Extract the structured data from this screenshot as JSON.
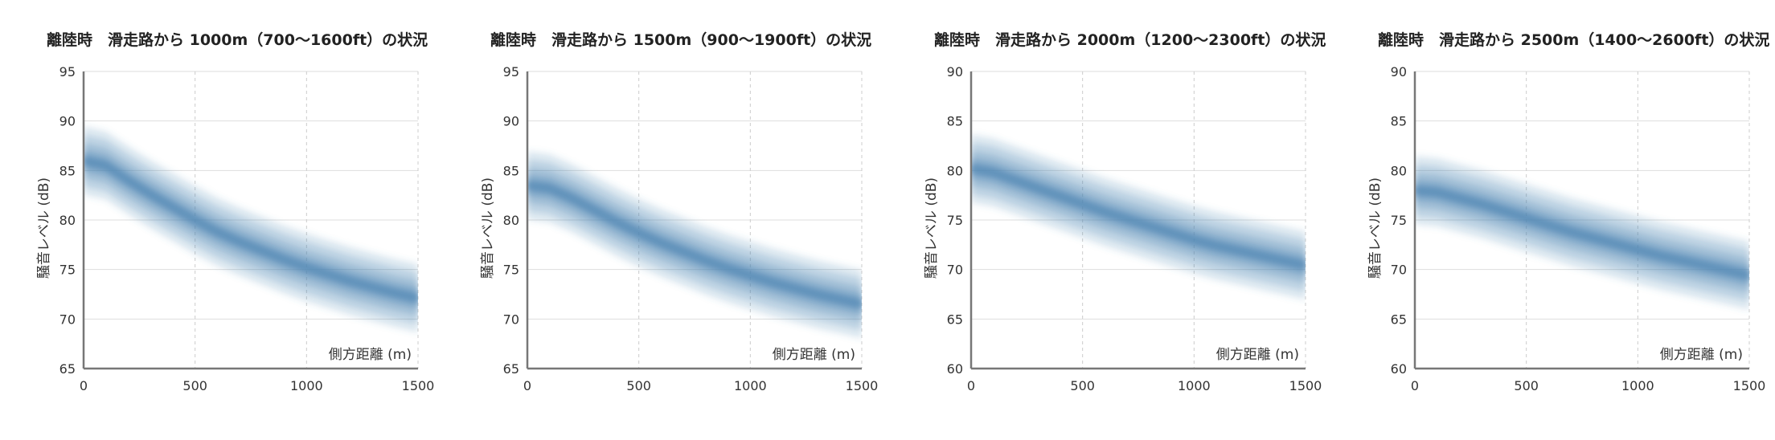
{
  "colors": {
    "band": "#4f86b3",
    "axis": "#777777",
    "grid": "#dddddd",
    "grid_dashed": "#cccccc"
  },
  "chart_data": [
    {
      "type": "area",
      "title": "離陸時　滑走路から 1000m（700〜1600ft）の状況",
      "xlabel": "側方距離 (m)",
      "ylabel": "騒音レベル (dB)",
      "xlim": [
        0,
        1500
      ],
      "ylim": [
        65,
        95
      ],
      "x_ticks": [
        "0",
        "500",
        "1000",
        "1500"
      ],
      "y_ticks": [
        "65",
        "70",
        "75",
        "80",
        "85",
        "90",
        "95"
      ],
      "grid": true,
      "x": [
        0,
        100,
        200,
        300,
        400,
        500,
        600,
        700,
        800,
        900,
        1000,
        1100,
        1200,
        1300,
        1400,
        1500
      ],
      "values": [
        86.0,
        85.5,
        84.0,
        82.6,
        81.3,
        80.0,
        78.8,
        77.8,
        76.9,
        76.0,
        75.2,
        74.5,
        73.8,
        73.2,
        72.6,
        72.1
      ],
      "band_halfwidth": 3.5
    },
    {
      "type": "area",
      "title": "離陸時　滑走路から 1500m（900〜1900ft）の状況",
      "xlabel": "側方距離 (m)",
      "ylabel": "騒音レベル (dB)",
      "xlim": [
        0,
        1500
      ],
      "ylim": [
        65,
        95
      ],
      "x_ticks": [
        "0",
        "500",
        "1000",
        "1500"
      ],
      "y_ticks": [
        "65",
        "70",
        "75",
        "80",
        "85",
        "90",
        "95"
      ],
      "grid": true,
      "x": [
        0,
        100,
        200,
        300,
        400,
        500,
        600,
        700,
        800,
        900,
        1000,
        1100,
        1200,
        1300,
        1400,
        1500
      ],
      "values": [
        83.5,
        83.2,
        82.2,
        81.0,
        79.8,
        78.7,
        77.7,
        76.8,
        75.9,
        75.1,
        74.4,
        73.7,
        73.1,
        72.5,
        72.0,
        71.5
      ],
      "band_halfwidth": 3.5
    },
    {
      "type": "area",
      "title": "離陸時　滑走路から 2000m（1200〜2300ft）の状況",
      "xlabel": "側方距離 (m)",
      "ylabel": "騒音レベル (dB)",
      "xlim": [
        0,
        1500
      ],
      "ylim": [
        60,
        90
      ],
      "x_ticks": [
        "0",
        "500",
        "1000",
        "1500"
      ],
      "y_ticks": [
        "60",
        "65",
        "70",
        "75",
        "80",
        "85",
        "90"
      ],
      "grid": true,
      "x": [
        0,
        100,
        200,
        300,
        400,
        500,
        600,
        700,
        800,
        900,
        1000,
        1100,
        1200,
        1300,
        1400,
        1500
      ],
      "values": [
        80.2,
        79.8,
        79.0,
        78.2,
        77.4,
        76.6,
        75.8,
        75.1,
        74.4,
        73.7,
        73.0,
        72.4,
        71.9,
        71.4,
        70.9,
        70.4
      ],
      "band_halfwidth": 3.5
    },
    {
      "type": "area",
      "title": "離陸時　滑走路から 2500m（1400〜2600ft）の状況",
      "xlabel": "側方距離 (m)",
      "ylabel": "騒音レベル (dB)",
      "xlim": [
        0,
        1500
      ],
      "ylim": [
        60,
        90
      ],
      "x_ticks": [
        "0",
        "500",
        "1000",
        "1500"
      ],
      "y_ticks": [
        "60",
        "65",
        "70",
        "75",
        "80",
        "85",
        "90"
      ],
      "grid": true,
      "x": [
        0,
        100,
        200,
        300,
        400,
        500,
        600,
        700,
        800,
        900,
        1000,
        1100,
        1200,
        1300,
        1400,
        1500
      ],
      "values": [
        78.0,
        77.8,
        77.2,
        76.6,
        75.9,
        75.2,
        74.5,
        73.8,
        73.2,
        72.6,
        72.0,
        71.4,
        70.9,
        70.4,
        69.9,
        69.4
      ],
      "band_halfwidth": 3.5
    }
  ]
}
